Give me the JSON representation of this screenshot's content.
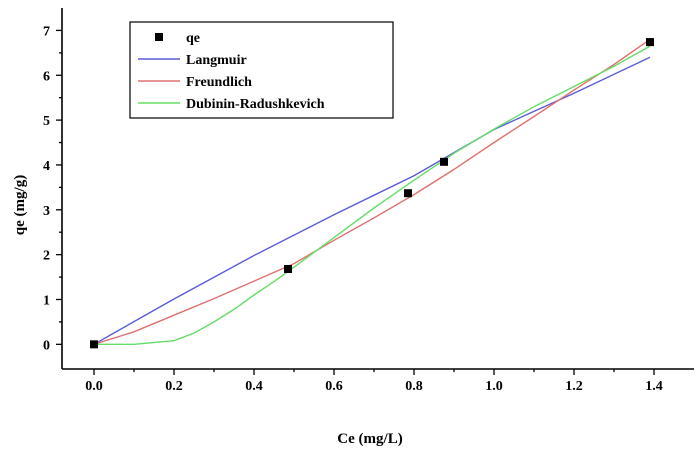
{
  "chart_data": {
    "type": "scatter",
    "xlabel": "Ce (mg/L)",
    "ylabel": "qe (mg/g)",
    "xlim": [
      -0.08,
      1.5
    ],
    "ylim": [
      -0.55,
      7.5
    ],
    "xticks": [
      "0.0",
      "0.2",
      "0.4",
      "0.6",
      "0.8",
      "1.0",
      "1.2",
      "1.4"
    ],
    "yticks": [
      "0",
      "1",
      "2",
      "3",
      "4",
      "5",
      "6",
      "7"
    ],
    "xtick_values": [
      0,
      0.2,
      0.4,
      0.6,
      0.8,
      1.0,
      1.2,
      1.4
    ],
    "ytick_values": [
      0,
      1,
      2,
      3,
      4,
      5,
      6,
      7
    ],
    "legend_position": "top-left",
    "series": [
      {
        "name": "qe",
        "kind": "scatter",
        "color": "#000000",
        "x": [
          0.0,
          0.485,
          0.785,
          0.875,
          1.39
        ],
        "y": [
          0.0,
          1.68,
          3.37,
          4.07,
          6.74
        ]
      },
      {
        "name": "Langmuir",
        "kind": "line",
        "color": "#5b5bd6",
        "x": [
          0.0,
          0.2,
          0.4,
          0.6,
          0.8,
          1.0,
          1.2,
          1.39
        ],
        "y": [
          0.0,
          1.01,
          1.98,
          2.89,
          3.76,
          4.79,
          5.6,
          6.4
        ]
      },
      {
        "name": "Freundlich",
        "kind": "line",
        "color": "#e07070",
        "x": [
          0.0,
          0.1,
          0.2,
          0.3,
          0.4,
          0.5,
          0.6,
          0.7,
          0.8,
          0.9,
          1.0,
          1.1,
          1.2,
          1.3,
          1.39
        ],
        "y": [
          0.0,
          0.28,
          0.65,
          1.02,
          1.41,
          1.8,
          2.32,
          2.82,
          3.34,
          3.9,
          4.5,
          5.08,
          5.67,
          6.24,
          6.8
        ]
      },
      {
        "name": "Dubinin-Radushkevich",
        "kind": "line",
        "color": "#66dd66",
        "x": [
          0.0,
          0.1,
          0.2,
          0.25,
          0.3,
          0.35,
          0.4,
          0.45,
          0.5,
          0.6,
          0.7,
          0.8,
          0.9,
          1.0,
          1.1,
          1.2,
          1.3,
          1.39
        ],
        "y": [
          0.0,
          0.0,
          0.08,
          0.25,
          0.5,
          0.78,
          1.1,
          1.4,
          1.72,
          2.38,
          3.04,
          3.66,
          4.26,
          4.8,
          5.3,
          5.75,
          6.2,
          6.65
        ]
      }
    ]
  }
}
